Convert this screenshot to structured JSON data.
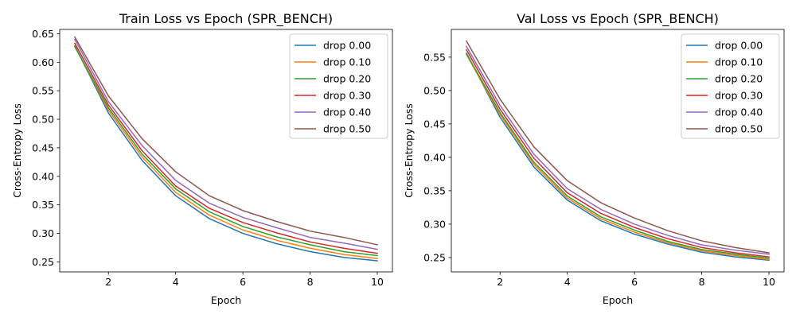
{
  "chart_data": [
    {
      "type": "line",
      "title": "Train Loss vs Epoch (SPR_BENCH)",
      "xlabel": "Epoch",
      "ylabel": "Cross-Entropy Loss",
      "x": [
        1,
        2,
        3,
        4,
        5,
        6,
        7,
        8,
        9,
        10
      ],
      "xlim": [
        0.55,
        10.45
      ],
      "ylim": [
        0.2325,
        0.6575
      ],
      "xticks": [
        2,
        4,
        6,
        8,
        10
      ],
      "xtick_labels": [
        "2",
        "4",
        "6",
        "8",
        "10"
      ],
      "yticks": [
        0.25,
        0.3,
        0.35,
        0.4,
        0.45,
        0.5,
        0.55,
        0.6,
        0.65
      ],
      "ytick_labels": [
        "0.25",
        "0.30",
        "0.35",
        "0.40",
        "0.45",
        "0.50",
        "0.55",
        "0.60",
        "0.65"
      ],
      "legend_position": "top-right",
      "grid": false,
      "series": [
        {
          "name": "drop 0.00",
          "color": "#1f77b4",
          "values": [
            0.629,
            0.511,
            0.428,
            0.366,
            0.326,
            0.3,
            0.282,
            0.268,
            0.258,
            0.252
          ]
        },
        {
          "name": "drop 0.10",
          "color": "#ff7f0e",
          "values": [
            0.628,
            0.516,
            0.434,
            0.372,
            0.332,
            0.306,
            0.288,
            0.274,
            0.263,
            0.256
          ]
        },
        {
          "name": "drop 0.20",
          "color": "#2ca02c",
          "values": [
            0.627,
            0.52,
            0.439,
            0.378,
            0.338,
            0.312,
            0.294,
            0.28,
            0.268,
            0.261
          ]
        },
        {
          "name": "drop 0.30",
          "color": "#d62728",
          "values": [
            0.633,
            0.525,
            0.445,
            0.383,
            0.344,
            0.319,
            0.301,
            0.285,
            0.274,
            0.265
          ]
        },
        {
          "name": "drop 0.40",
          "color": "#9467bd",
          "values": [
            0.64,
            0.531,
            0.454,
            0.393,
            0.353,
            0.328,
            0.31,
            0.293,
            0.283,
            0.272
          ]
        },
        {
          "name": "drop 0.50",
          "color": "#8c564b",
          "values": [
            0.644,
            0.541,
            0.466,
            0.408,
            0.366,
            0.34,
            0.321,
            0.304,
            0.293,
            0.28
          ]
        }
      ]
    },
    {
      "type": "line",
      "title": "Val Loss vs Epoch (SPR_BENCH)",
      "xlabel": "Epoch",
      "ylabel": "Cross-Entropy Loss",
      "x": [
        1,
        2,
        3,
        4,
        5,
        6,
        7,
        8,
        9,
        10
      ],
      "xlim": [
        0.55,
        10.45
      ],
      "ylim": [
        0.2285,
        0.5915
      ],
      "xticks": [
        2,
        4,
        6,
        8,
        10
      ],
      "xtick_labels": [
        "2",
        "4",
        "6",
        "8",
        "10"
      ],
      "yticks": [
        0.25,
        0.3,
        0.35,
        0.4,
        0.45,
        0.5,
        0.55
      ],
      "ytick_labels": [
        "0.25",
        "0.30",
        "0.35",
        "0.40",
        "0.45",
        "0.50",
        "0.55"
      ],
      "legend_position": "top-right",
      "grid": false,
      "series": [
        {
          "name": "drop 0.00",
          "color": "#1f77b4",
          "values": [
            0.556,
            0.46,
            0.386,
            0.336,
            0.305,
            0.285,
            0.27,
            0.258,
            0.251,
            0.246
          ]
        },
        {
          "name": "drop 0.10",
          "color": "#ff7f0e",
          "values": [
            0.554,
            0.464,
            0.39,
            0.339,
            0.308,
            0.288,
            0.272,
            0.26,
            0.253,
            0.247
          ]
        },
        {
          "name": "drop 0.20",
          "color": "#2ca02c",
          "values": [
            0.555,
            0.467,
            0.393,
            0.342,
            0.311,
            0.291,
            0.274,
            0.262,
            0.255,
            0.249
          ]
        },
        {
          "name": "drop 0.30",
          "color": "#d62728",
          "values": [
            0.561,
            0.472,
            0.399,
            0.347,
            0.316,
            0.295,
            0.278,
            0.265,
            0.257,
            0.251
          ]
        },
        {
          "name": "drop 0.40",
          "color": "#9467bd",
          "values": [
            0.566,
            0.478,
            0.405,
            0.353,
            0.322,
            0.3,
            0.283,
            0.269,
            0.261,
            0.255
          ]
        },
        {
          "name": "drop 0.50",
          "color": "#8c564b",
          "values": [
            0.574,
            0.487,
            0.416,
            0.365,
            0.332,
            0.309,
            0.29,
            0.275,
            0.265,
            0.257
          ]
        }
      ]
    }
  ]
}
